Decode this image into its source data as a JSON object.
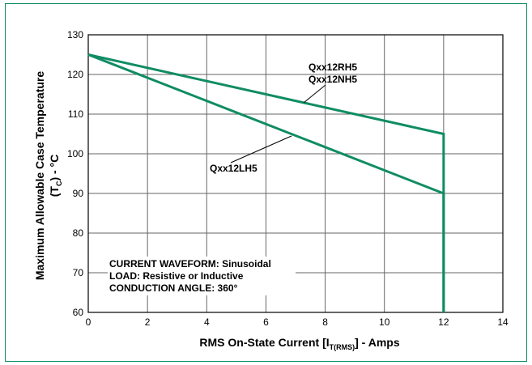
{
  "chart_data": {
    "type": "line",
    "xlabel": {
      "main": "RMS On-State Current [I",
      "sub": "T(RMS)",
      "tail": "] - Amps"
    },
    "ylabel": {
      "line1": "Maximum Allowable Case Temperature",
      "line2_pre": "(T",
      "line2_sub": "C",
      "line2_post": ") - °C"
    },
    "xlim": [
      0,
      14
    ],
    "ylim": [
      60,
      130
    ],
    "xticks": [
      0,
      2,
      4,
      6,
      8,
      10,
      12,
      14
    ],
    "yticks": [
      60,
      70,
      80,
      90,
      100,
      110,
      120,
      130
    ],
    "grid": true,
    "line_color": "#0f8c63",
    "series": [
      {
        "labels": [
          "Qxx12RH5",
          "Qxx12NH5"
        ],
        "points": [
          [
            0,
            125
          ],
          [
            12,
            105
          ],
          [
            12,
            60
          ]
        ]
      },
      {
        "labels": [
          "Qxx12LH5"
        ],
        "points": [
          [
            0,
            125
          ],
          [
            12,
            90
          ],
          [
            12,
            60
          ]
        ]
      }
    ],
    "annotations": [
      "CURRENT WAVEFORM: Sinusoidal",
      "LOAD: Resistive or Inductive",
      "CONDUCTION ANGLE: 360°"
    ]
  }
}
